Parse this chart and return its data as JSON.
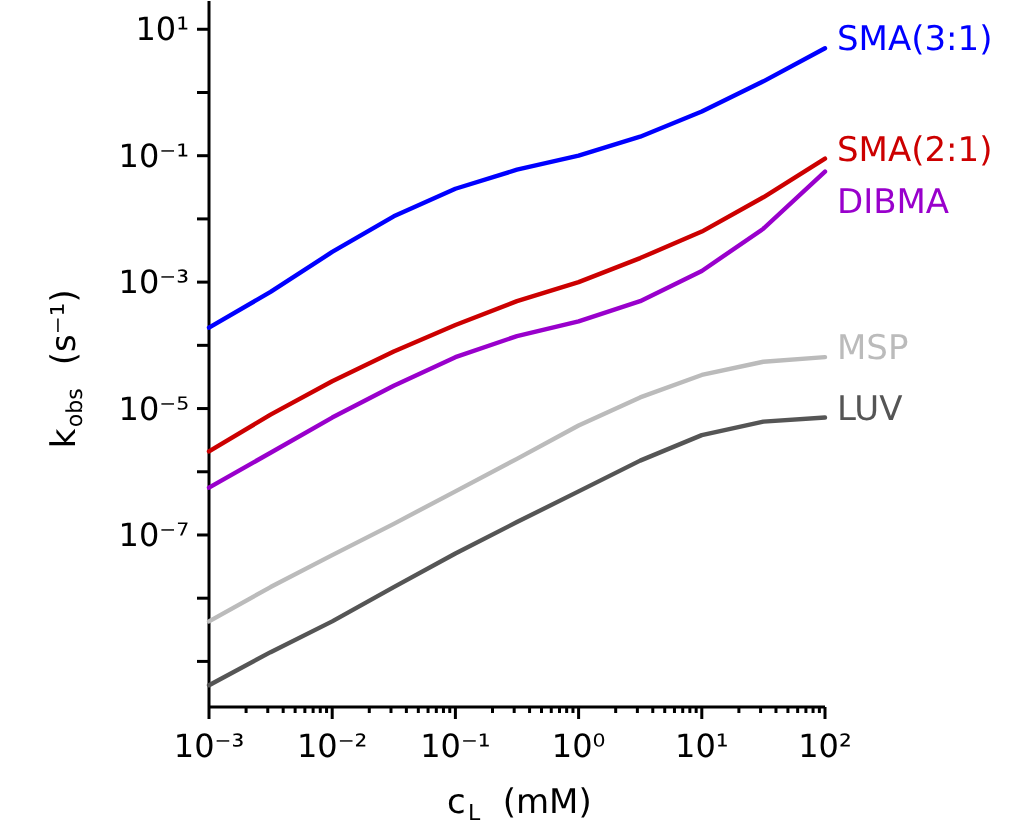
{
  "chart_data": {
    "type": "line",
    "xlabel": "c$_{L}$ (mM)",
    "ylabel": "k$_{obs}$ (s⁻¹)",
    "log": "xy",
    "xlim": [
      0.001,
      100
    ],
    "ylim": [
      1.9e-10,
      28
    ],
    "x": [
      0.001,
      0.00316,
      0.01,
      0.0316,
      0.1,
      0.316,
      1,
      3.16,
      10,
      31.6,
      100
    ],
    "xticks": [
      {
        "value": 0.001,
        "label": "10⁻³"
      },
      {
        "value": 0.01,
        "label": "10⁻²"
      },
      {
        "value": 0.1,
        "label": "10⁻¹"
      },
      {
        "value": 1,
        "label": "10⁰"
      },
      {
        "value": 10,
        "label": "10¹"
      },
      {
        "value": 100,
        "label": "10²"
      },
      {
        "value": 0.002,
        "label": null
      },
      {
        "value": 0.003,
        "label": null
      },
      {
        "value": 0.004,
        "label": null
      },
      {
        "value": 0.005,
        "label": null
      },
      {
        "value": 0.006,
        "label": null
      },
      {
        "value": 0.007,
        "label": null
      },
      {
        "value": 0.008,
        "label": null
      },
      {
        "value": 0.009,
        "label": null
      },
      {
        "value": 0.02,
        "label": null
      },
      {
        "value": 0.03,
        "label": null
      },
      {
        "value": 0.04,
        "label": null
      },
      {
        "value": 0.05,
        "label": null
      },
      {
        "value": 0.06,
        "label": null
      },
      {
        "value": 0.07,
        "label": null
      },
      {
        "value": 0.08,
        "label": null
      },
      {
        "value": 0.09,
        "label": null
      },
      {
        "value": 0.2,
        "label": null
      },
      {
        "value": 0.3,
        "label": null
      },
      {
        "value": 0.4,
        "label": null
      },
      {
        "value": 0.5,
        "label": null
      },
      {
        "value": 0.6,
        "label": null
      },
      {
        "value": 0.7,
        "label": null
      },
      {
        "value": 0.8,
        "label": null
      },
      {
        "value": 0.9,
        "label": null
      },
      {
        "value": 2,
        "label": null
      },
      {
        "value": 3,
        "label": null
      },
      {
        "value": 4,
        "label": null
      },
      {
        "value": 5,
        "label": null
      },
      {
        "value": 6,
        "label": null
      },
      {
        "value": 7,
        "label": null
      },
      {
        "value": 8,
        "label": null
      },
      {
        "value": 9,
        "label": null
      },
      {
        "value": 20,
        "label": null
      },
      {
        "value": 30,
        "label": null
      },
      {
        "value": 40,
        "label": null
      },
      {
        "value": 50,
        "label": null
      },
      {
        "value": 60,
        "label": null
      },
      {
        "value": 70,
        "label": null
      },
      {
        "value": 80,
        "label": null
      },
      {
        "value": 90,
        "label": null
      }
    ],
    "yticks": [
      {
        "value": 1e-09,
        "label": null
      },
      {
        "value": 1e-08,
        "label": null
      },
      {
        "value": 1e-07,
        "label": "10⁻⁷"
      },
      {
        "value": 1e-06,
        "label": null
      },
      {
        "value": 1e-05,
        "label": "10⁻⁵"
      },
      {
        "value": 0.0001,
        "label": null
      },
      {
        "value": 0.001,
        "label": "10⁻³"
      },
      {
        "value": 0.01,
        "label": null
      },
      {
        "value": 0.1,
        "label": "10⁻¹"
      },
      {
        "value": 1,
        "label": null
      },
      {
        "value": 10,
        "label": "10¹"
      }
    ],
    "grid": false,
    "marker": "none",
    "line_style": "solid",
    "series": [
      {
        "name": "SMA(3:1)",
        "color": "#0000ff",
        "values": [
          0.00019,
          0.0007,
          0.003,
          0.011,
          0.03,
          0.06,
          0.1,
          0.2,
          0.5,
          1.5,
          5
        ]
      },
      {
        "name": "SMA(2:1)",
        "color": "#cc0000",
        "values": [
          2.1e-06,
          8e-06,
          2.7e-05,
          8e-05,
          0.00021,
          0.0005,
          0.001,
          0.0024,
          0.0063,
          0.022,
          0.09
        ]
      },
      {
        "name": "DIBMA",
        "color": "#9900cc",
        "values": [
          5.6e-07,
          2e-06,
          7.2e-06,
          2.3e-05,
          6.5e-05,
          0.00014,
          0.00024,
          0.0005,
          0.0015,
          0.007,
          0.056
        ]
      },
      {
        "name": "MSP",
        "color": "#bbbbbb",
        "values": [
          4.3e-09,
          1.5e-08,
          4.8e-08,
          1.5e-07,
          4.9e-07,
          1.6e-06,
          5.4e-06,
          1.5e-05,
          3.4e-05,
          5.5e-05,
          6.5e-05
        ]
      },
      {
        "name": "LUV",
        "color": "#555555",
        "values": [
          4.2e-10,
          1.4e-09,
          4.3e-09,
          1.5e-08,
          5.1e-08,
          1.6e-07,
          4.9e-07,
          1.5e-06,
          3.8e-06,
          6.2e-06,
          7.2e-06
        ]
      }
    ]
  }
}
